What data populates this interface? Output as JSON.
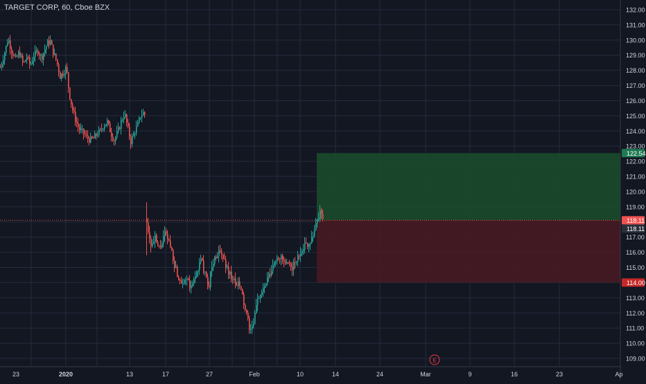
{
  "header": {
    "symbol_label": "TARGET CORP, 60, Cboe BZX"
  },
  "colors": {
    "background": "#131722",
    "grid": "#262b3e",
    "up": "#26a69a",
    "down": "#ef5350",
    "axis_text": "#d1d4dc",
    "profit_zone": "#1b4d2b",
    "loss_zone": "#4a1a22",
    "target_badge": "#1e7a52",
    "stop_badge": "#c62828",
    "price_badge": "#ef5350",
    "price_line": "#ef5350",
    "earnings_marker": "#f23645"
  },
  "chart_data": {
    "type": "candlestick",
    "title": "TARGET CORP, 60, Cboe BZX",
    "y_axis_position": "right",
    "ylim": [
      108.3,
      132.3
    ],
    "y_ticks": [
      109,
      110,
      111,
      112,
      113,
      114,
      115,
      116,
      117,
      118,
      119,
      120,
      121,
      122,
      123,
      124,
      125,
      126,
      127,
      128,
      129,
      130,
      131,
      132
    ],
    "y_tick_labels": [
      "109.00",
      "110.00",
      "111.00",
      "112.00",
      "113.00",
      "114.00",
      "115.00",
      "116.00",
      "117.00",
      "118.00",
      "119.00",
      "120.00",
      "121.00",
      "122.00",
      "123.00",
      "124.00",
      "125.00",
      "126.00",
      "127.00",
      "128.00",
      "129.00",
      "130.00",
      "131.00",
      "132.00"
    ],
    "x_axis": {
      "ticks": [
        {
          "label": "23",
          "bold": false
        },
        {
          "label": "2020",
          "bold": true
        },
        {
          "label": "13",
          "bold": false
        },
        {
          "label": "17",
          "bold": false
        },
        {
          "label": "27",
          "bold": false
        },
        {
          "label": "Feb",
          "bold": false
        },
        {
          "label": "10",
          "bold": false
        },
        {
          "label": "14",
          "bold": false
        },
        {
          "label": "24",
          "bold": false
        },
        {
          "label": "Mar",
          "bold": false
        },
        {
          "label": "9",
          "bold": false
        },
        {
          "label": "16",
          "bold": false
        },
        {
          "label": "23",
          "bold": false
        },
        {
          "label": "Ap",
          "bold": false
        }
      ]
    },
    "grid": true,
    "candle_segments": [
      {
        "path": [
          [
            0,
            128.2
          ],
          [
            5,
            129.0
          ],
          [
            11,
            130.1
          ],
          [
            16,
            129.3
          ],
          [
            22,
            128.7
          ],
          [
            27,
            129.2
          ],
          [
            33,
            128.4
          ],
          [
            38,
            128.9
          ],
          [
            43,
            128.3
          ],
          [
            48,
            129.0
          ],
          [
            54,
            129.3
          ],
          [
            59,
            128.8
          ],
          [
            64,
            129.4
          ],
          [
            68,
            129.8
          ],
          [
            72,
            129.9
          ],
          [
            76,
            129.2
          ],
          [
            81,
            128.6
          ],
          [
            86,
            127.6
          ],
          [
            91,
            127.9
          ],
          [
            95,
            128.2
          ],
          [
            99,
            126.5
          ],
          [
            104,
            125.4
          ],
          [
            109,
            124.6
          ],
          [
            114,
            124.1
          ],
          [
            119,
            123.9
          ],
          [
            124,
            123.6
          ],
          [
            129,
            123.4
          ],
          [
            134,
            123.5
          ],
          [
            139,
            123.8
          ],
          [
            144,
            124.0
          ],
          [
            149,
            124.4
          ],
          [
            154,
            124.6
          ],
          [
            159,
            123.9
          ],
          [
            164,
            123.4
          ],
          [
            169,
            123.9
          ],
          [
            174,
            124.6
          ],
          [
            179,
            125.2
          ],
          [
            183,
            124.3
          ],
          [
            188,
            123.3
          ],
          [
            193,
            123.9
          ],
          [
            198,
            124.4
          ],
          [
            202,
            125.0
          ],
          [
            206,
            125.2
          ],
          [
            209,
            125.0
          ]
        ],
        "volatility": 0.55,
        "seed": 7
      },
      {
        "path": [
          [
            211,
            118.2
          ],
          [
            214,
            117.1
          ],
          [
            218,
            116.4
          ],
          [
            223,
            116.9
          ],
          [
            228,
            116.2
          ],
          [
            233,
            116.6
          ],
          [
            237,
            117.2
          ],
          [
            241,
            116.9
          ],
          [
            246,
            116.3
          ],
          [
            251,
            115.2
          ],
          [
            256,
            114.4
          ],
          [
            261,
            114.1
          ],
          [
            266,
            114.3
          ],
          [
            270,
            114.0
          ],
          [
            275,
            113.6
          ],
          [
            280,
            114.3
          ],
          [
            285,
            115.0
          ],
          [
            290,
            115.5
          ],
          [
            295,
            114.5
          ],
          [
            300,
            113.6
          ],
          [
            304,
            114.9
          ],
          [
            309,
            115.6
          ],
          [
            314,
            116.0
          ],
          [
            319,
            115.8
          ],
          [
            324,
            115.3
          ],
          [
            329,
            114.7
          ],
          [
            334,
            114.4
          ],
          [
            339,
            113.8
          ],
          [
            344,
            113.9
          ],
          [
            348,
            113.3
          ],
          [
            353,
            112.2
          ],
          [
            358,
            111.2
          ],
          [
            362,
            110.8
          ],
          [
            366,
            111.4
          ],
          [
            370,
            113.0
          ],
          [
            375,
            113.2
          ],
          [
            380,
            113.6
          ],
          [
            385,
            114.2
          ],
          [
            390,
            114.6
          ],
          [
            395,
            115.3
          ],
          [
            400,
            115.8
          ],
          [
            405,
            115.6
          ],
          [
            410,
            115.2
          ],
          [
            415,
            115.1
          ],
          [
            420,
            115.0
          ],
          [
            425,
            115.3
          ],
          [
            430,
            115.7
          ],
          [
            435,
            116.3
          ],
          [
            440,
            116.5
          ],
          [
            445,
            116.6
          ],
          [
            450,
            117.1
          ],
          [
            454,
            117.6
          ],
          [
            458,
            118.4
          ],
          [
            462,
            118.6
          ],
          [
            466,
            118.3
          ]
        ],
        "volatility": 0.6,
        "seed": 21
      }
    ],
    "position": {
      "type": "long",
      "entry": 118.11,
      "target": 122.54,
      "stop": 114.0,
      "start_x": 457,
      "end_x": 895,
      "target_label": "122.54",
      "stop_label": "114.00"
    },
    "last_price": 118.11,
    "last_price_labels": [
      "118.11",
      "118.11"
    ],
    "events": [
      {
        "label": "E",
        "x_index": 627
      }
    ]
  }
}
